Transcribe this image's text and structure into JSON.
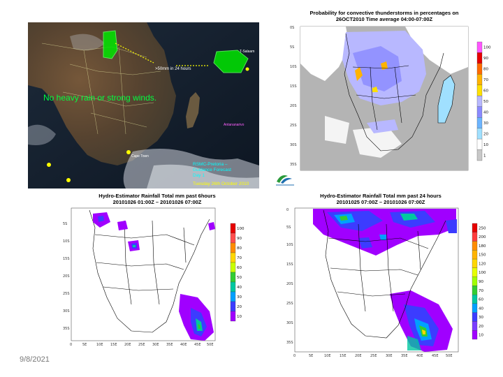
{
  "slide": {
    "date": "9/8/2021"
  },
  "satellite": {
    "message": "No heavy rain or strong winds.",
    "annotation_arrow": ">50mm in 24 hours",
    "cities": [
      "T-Salaam",
      "Antananarivo",
      "Windhoek",
      "Johannesburg",
      "Cape Town",
      "Port Elizabeth",
      "Durban"
    ],
    "footer": [
      "RSMC-Pretoria –",
      "Guidance Forecast",
      "Day 1",
      "Tuesday 26th October 2010"
    ]
  },
  "probability": {
    "title": [
      "Probability for convective thunderstorms in percentages on",
      "26OCT2010 Time average 04:00-07:00Z"
    ],
    "colorbar": {
      "labels": [
        "100",
        "90",
        "80",
        "70",
        "60",
        "50",
        "40",
        "30",
        "20",
        "10",
        "1"
      ],
      "colors": [
        "#ff55ff",
        "#e60000",
        "#ff6a00",
        "#ffb300",
        "#ffe000",
        "#b8b8ff",
        "#8a8aff",
        "#6cb4ff",
        "#a0e0ff",
        "#ffffff",
        "#c8c8c8"
      ]
    },
    "lat_labels": [
      "0S",
      "5S",
      "10S",
      "15S",
      "20S",
      "25S",
      "30S",
      "35S"
    ]
  },
  "logo": {
    "name": "South African Weather Service"
  },
  "hydro6": {
    "title": [
      "Hydro-Estimator Rainfall Total mm past 6hours",
      "20101026 01:00Z – 20101026 07:00Z"
    ],
    "colorbar": {
      "labels": [
        "100",
        "90",
        "80",
        "70",
        "60",
        "50",
        "40",
        "30",
        "20",
        "10"
      ],
      "colors": [
        "#e60000",
        "#ff4d4d",
        "#ff8c00",
        "#ffd700",
        "#c8ff00",
        "#32cd32",
        "#00c8a0",
        "#00a0ff",
        "#3c3cff",
        "#a000ff"
      ]
    },
    "lat_labels": [
      "5S",
      "10S",
      "15S",
      "20S",
      "25S",
      "30S",
      "35S"
    ],
    "lon_labels": [
      "0",
      "5E",
      "10E",
      "15E",
      "20E",
      "25E",
      "30E",
      "35E",
      "40E",
      "45E",
      "50E"
    ]
  },
  "hydro24": {
    "title": [
      "Hydro-Estimator Rainfall Total mm past 24 hours",
      "20101025 07:00Z – 20101026 07:00Z"
    ],
    "colorbar": {
      "labels": [
        "250",
        "200",
        "180",
        "150",
        "120",
        "100",
        "90",
        "70",
        "60",
        "40",
        "30",
        "20",
        "10"
      ],
      "colors": [
        "#e60000",
        "#ff3c3c",
        "#ff8c00",
        "#ffb400",
        "#ffd700",
        "#e6ff00",
        "#a0ff00",
        "#32cd32",
        "#00c8a0",
        "#00a0ff",
        "#3c3cff",
        "#7a3cff",
        "#a000ff"
      ]
    },
    "lat_labels": [
      "0",
      "5S",
      "10S",
      "15S",
      "20S",
      "25S",
      "30S",
      "35S"
    ],
    "lon_labels": [
      "0",
      "5E",
      "10E",
      "15E",
      "20E",
      "25E",
      "30E",
      "35E",
      "40E",
      "45E",
      "50E"
    ]
  }
}
